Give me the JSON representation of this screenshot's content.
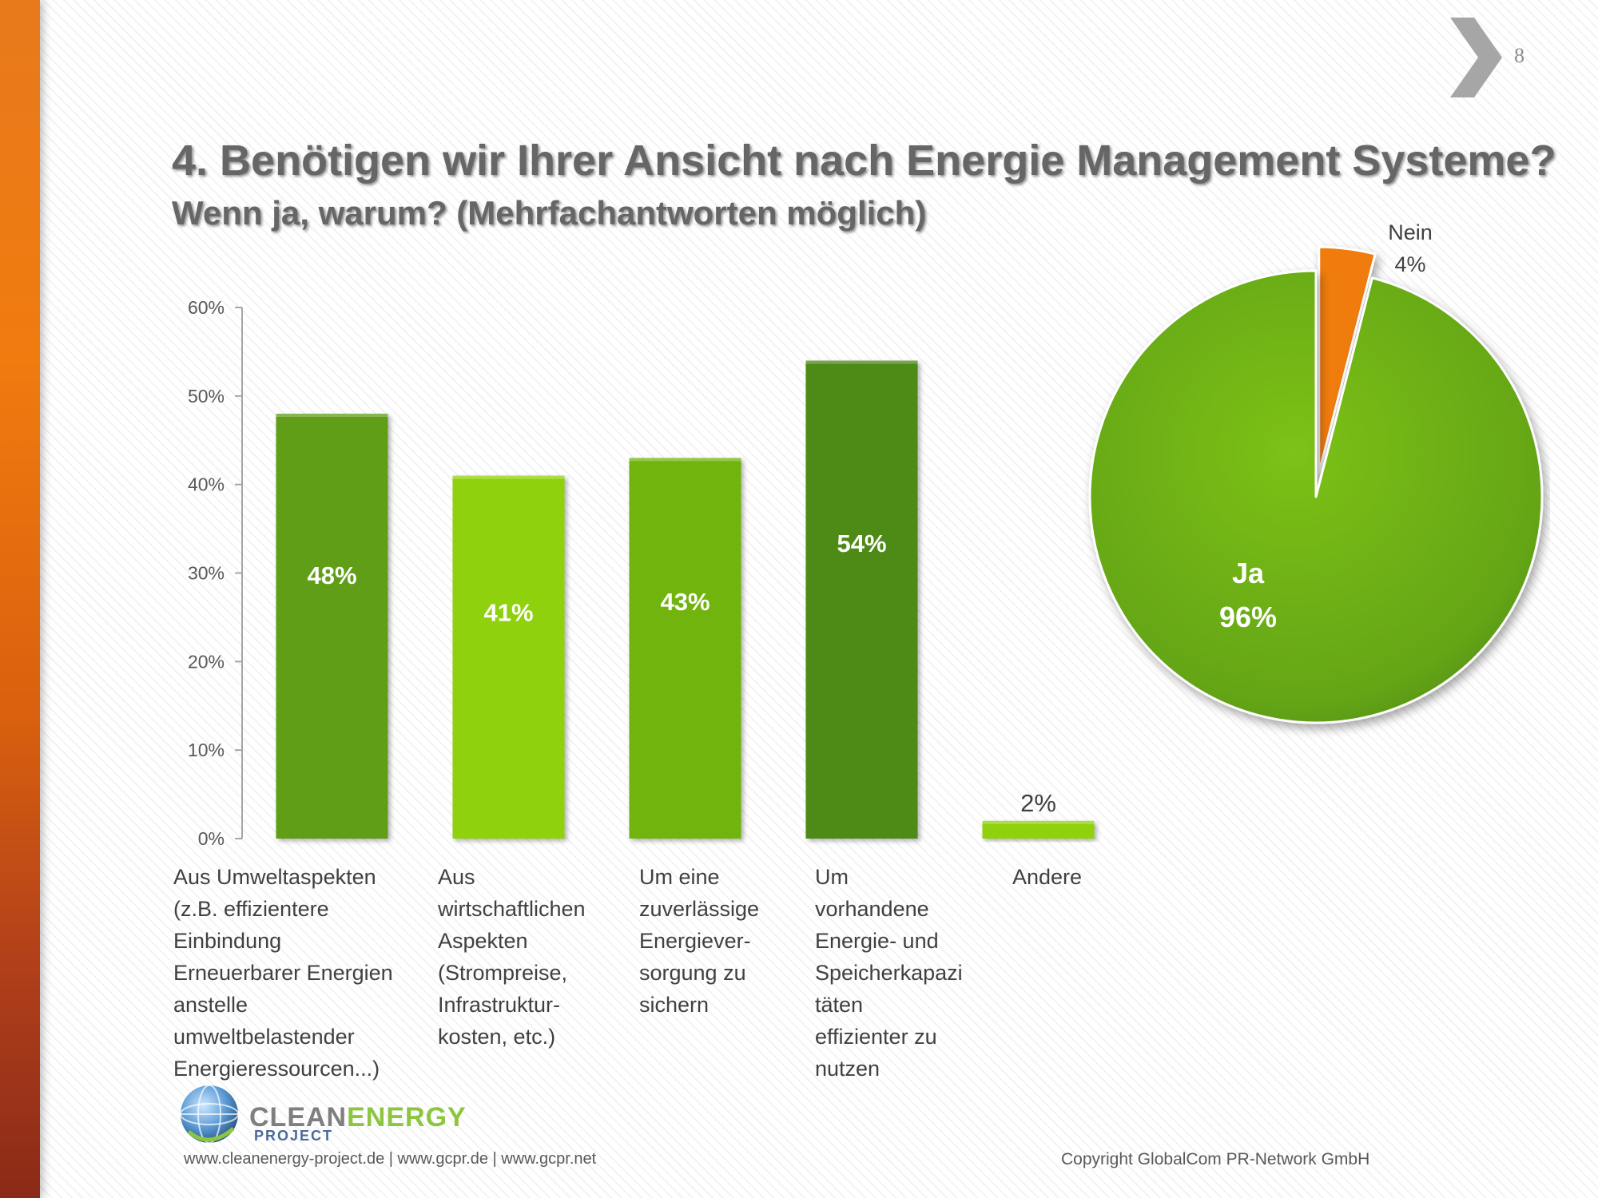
{
  "page_number": "8",
  "title": "4. Benötigen wir Ihrer Ansicht nach Energie Management Systeme?",
  "subtitle": "Wenn ja, warum? (Mehrfachantworten möglich)",
  "chart_data": [
    {
      "type": "bar",
      "categories": [
        "Aus Umweltaspekten\n(z.B. effizientere\nEinbindung\nErneuerbarer Energien\nanstelle\numweltbelastender\nEnergieressourcen...)",
        "Aus\nwirtschaftlichen\nAspekten\n(Strompreise,\nInfrastruktur-\nkosten, etc.)",
        "Um eine\nzuverlässige\nEnergiever-\nsorgung zu\nsichern",
        "Um\nvorhandene\nEnergie- und\nSpeicherkapazi\ntäten\neffizienter zu\nnutzen",
        "Andere"
      ],
      "values": [
        48,
        41,
        43,
        54,
        2
      ],
      "data_labels": [
        "48%",
        "41%",
        "43%",
        "54%",
        "2%"
      ],
      "yticks": [
        "0%",
        "10%",
        "20%",
        "30%",
        "40%",
        "50%",
        "60%"
      ],
      "ylim": [
        0,
        60
      ],
      "bar_colors": [
        "#5e9e14",
        "#8fd10f",
        "#6fb410",
        "#4d8a12",
        "#8fd10f"
      ],
      "grid": false
    },
    {
      "type": "pie",
      "labels": [
        "Nein",
        "Ja"
      ],
      "values": [
        4,
        96
      ],
      "data_labels": [
        "4%",
        "96%"
      ],
      "colors": [
        "#f07b0f",
        "#6aad12"
      ]
    }
  ],
  "logo": {
    "brand_part1": "CLEAN",
    "brand_part2": "ENERGY",
    "brand_sub": "PROJECT"
  },
  "footer": {
    "links": "www.cleanenergy-project.de | www.gcpr.de | www.gcpr.net",
    "copyright": "Copyright GlobalCom PR-Network GmbH"
  }
}
